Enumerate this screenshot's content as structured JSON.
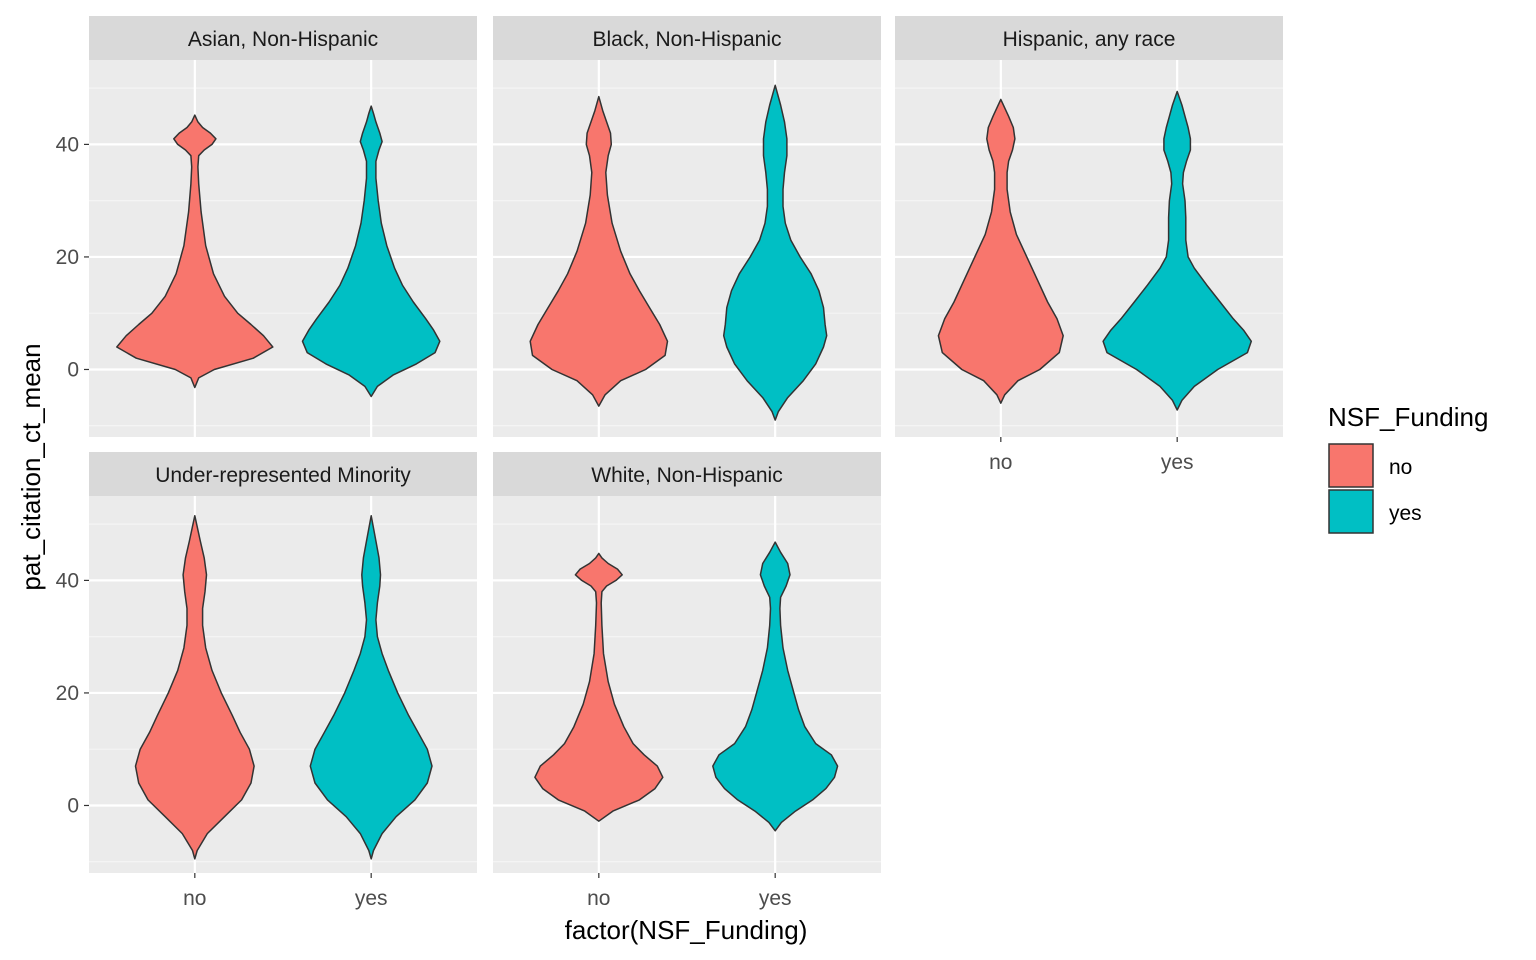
{
  "chart_data": {
    "type": "violin",
    "xlabel": "factor(NSF_Funding)",
    "ylabel": "pat_citation_ct_mean",
    "categories": [
      "no",
      "yes"
    ],
    "y_ticks": [
      0,
      20,
      40
    ],
    "ylim": [
      -12,
      55
    ],
    "colors": {
      "no": "#F8766D",
      "yes": "#00BFC4"
    },
    "legend": {
      "title": "NSF_Funding",
      "position": "right",
      "items": [
        "no",
        "yes"
      ]
    },
    "panels": [
      {
        "title": "Asian, Non-Hispanic",
        "violins": [
          {
            "group": "no",
            "profile": [
              [
                -3.2,
                0
              ],
              [
                -1.5,
                5
              ],
              [
                0,
                25
              ],
              [
                2,
                75
              ],
              [
                4,
                100
              ],
              [
                6,
                88
              ],
              [
                8,
                72
              ],
              [
                10,
                55
              ],
              [
                13,
                38
              ],
              [
                17,
                24
              ],
              [
                22,
                14
              ],
              [
                28,
                8
              ],
              [
                33,
                5
              ],
              [
                36,
                4
              ],
              [
                38,
                5
              ],
              [
                39,
                12
              ],
              [
                40,
                22
              ],
              [
                41,
                27
              ],
              [
                42,
                20
              ],
              [
                43,
                10
              ],
              [
                44,
                4
              ],
              [
                45.2,
                0
              ]
            ]
          },
          {
            "group": "yes",
            "profile": [
              [
                -4.8,
                0
              ],
              [
                -3,
                8
              ],
              [
                -1,
                28
              ],
              [
                1,
                58
              ],
              [
                3,
                82
              ],
              [
                5,
                88
              ],
              [
                7,
                80
              ],
              [
                9,
                70
              ],
              [
                12,
                54
              ],
              [
                15,
                40
              ],
              [
                18,
                30
              ],
              [
                22,
                20
              ],
              [
                26,
                13
              ],
              [
                30,
                9
              ],
              [
                34,
                6
              ],
              [
                37,
                6
              ],
              [
                39,
                10
              ],
              [
                40.5,
                14
              ],
              [
                42,
                11
              ],
              [
                44,
                6
              ],
              [
                45.5,
                3
              ],
              [
                46.8,
                0
              ]
            ]
          }
        ]
      },
      {
        "title": "Black, Non-Hispanic",
        "violins": [
          {
            "group": "no",
            "profile": [
              [
                -6.5,
                0
              ],
              [
                -4.5,
                8
              ],
              [
                -2,
                28
              ],
              [
                0,
                60
              ],
              [
                2.5,
                85
              ],
              [
                5,
                88
              ],
              [
                8,
                78
              ],
              [
                11,
                65
              ],
              [
                14,
                52
              ],
              [
                17,
                40
              ],
              [
                21,
                28
              ],
              [
                26,
                17
              ],
              [
                31,
                11
              ],
              [
                35,
                9
              ],
              [
                38,
                12
              ],
              [
                40,
                16
              ],
              [
                42,
                15
              ],
              [
                44,
                10
              ],
              [
                46,
                5
              ],
              [
                48.5,
                0
              ]
            ]
          },
          {
            "group": "yes",
            "profile": [
              [
                -9,
                0
              ],
              [
                -7.5,
                4
              ],
              [
                -5,
                16
              ],
              [
                -2,
                36
              ],
              [
                1,
                52
              ],
              [
                4,
                62
              ],
              [
                6,
                66
              ],
              [
                8,
                64
              ],
              [
                11,
                62
              ],
              [
                14,
                56
              ],
              [
                17,
                46
              ],
              [
                20,
                32
              ],
              [
                23,
                20
              ],
              [
                26,
                13
              ],
              [
                29,
                10
              ],
              [
                32,
                10
              ],
              [
                35,
                12
              ],
              [
                38,
                15
              ],
              [
                41,
                15
              ],
              [
                44,
                12
              ],
              [
                47,
                7
              ],
              [
                50.5,
                0
              ]
            ]
          }
        ]
      },
      {
        "title": "Hispanic, any race",
        "violins": [
          {
            "group": "no",
            "profile": [
              [
                -6,
                0
              ],
              [
                -4.5,
                5
              ],
              [
                -2,
                22
              ],
              [
                0,
                50
              ],
              [
                3,
                75
              ],
              [
                6,
                80
              ],
              [
                9,
                72
              ],
              [
                12,
                60
              ],
              [
                15,
                50
              ],
              [
                18,
                40
              ],
              [
                21,
                30
              ],
              [
                24,
                20
              ],
              [
                28,
                12
              ],
              [
                32,
                8
              ],
              [
                35,
                8
              ],
              [
                37,
                10
              ],
              [
                39,
                15
              ],
              [
                41,
                18
              ],
              [
                43,
                16
              ],
              [
                45,
                10
              ],
              [
                48,
                0
              ]
            ]
          },
          {
            "group": "yes",
            "profile": [
              [
                -7.2,
                0
              ],
              [
                -5.5,
                6
              ],
              [
                -3,
                22
              ],
              [
                0,
                52
              ],
              [
                3,
                90
              ],
              [
                5,
                95
              ],
              [
                7,
                85
              ],
              [
                9,
                72
              ],
              [
                12,
                55
              ],
              [
                15,
                38
              ],
              [
                18,
                22
              ],
              [
                20,
                14
              ],
              [
                23,
                11
              ],
              [
                27,
                11
              ],
              [
                30,
                10
              ],
              [
                33,
                7
              ],
              [
                35,
                8
              ],
              [
                37,
                12
              ],
              [
                39,
                17
              ],
              [
                41,
                17
              ],
              [
                43,
                14
              ],
              [
                45,
                10
              ],
              [
                47,
                6
              ],
              [
                49.4,
                0
              ]
            ]
          }
        ]
      },
      {
        "title": "Under-represented Minority",
        "violins": [
          {
            "group": "no",
            "profile": [
              [
                -9.5,
                0
              ],
              [
                -8,
                3
              ],
              [
                -5,
                16
              ],
              [
                -2,
                38
              ],
              [
                1,
                60
              ],
              [
                4,
                72
              ],
              [
                7,
                76
              ],
              [
                10,
                70
              ],
              [
                13,
                58
              ],
              [
                16,
                48
              ],
              [
                20,
                34
              ],
              [
                24,
                22
              ],
              [
                28,
                14
              ],
              [
                32,
                10
              ],
              [
                35,
                10
              ],
              [
                38,
                13
              ],
              [
                41,
                15
              ],
              [
                44,
                12
              ],
              [
                47,
                7
              ],
              [
                51.5,
                0
              ]
            ]
          },
          {
            "group": "yes",
            "profile": [
              [
                -9.5,
                0
              ],
              [
                -8,
                3
              ],
              [
                -5,
                14
              ],
              [
                -2,
                32
              ],
              [
                1,
                56
              ],
              [
                4,
                72
              ],
              [
                7,
                78
              ],
              [
                10,
                72
              ],
              [
                13,
                60
              ],
              [
                16,
                48
              ],
              [
                20,
                34
              ],
              [
                24,
                22
              ],
              [
                27,
                14
              ],
              [
                30,
                8
              ],
              [
                33,
                6
              ],
              [
                36,
                8
              ],
              [
                39,
                11
              ],
              [
                41,
                12
              ],
              [
                44,
                10
              ],
              [
                47,
                6
              ],
              [
                51.5,
                0
              ]
            ]
          }
        ]
      },
      {
        "title": "White, Non-Hispanic",
        "violins": [
          {
            "group": "no",
            "profile": [
              [
                -2.8,
                0
              ],
              [
                -1,
                18
              ],
              [
                1,
                52
              ],
              [
                3,
                72
              ],
              [
                5,
                82
              ],
              [
                7,
                75
              ],
              [
                9,
                58
              ],
              [
                11,
                44
              ],
              [
                14,
                32
              ],
              [
                18,
                20
              ],
              [
                22,
                12
              ],
              [
                27,
                6
              ],
              [
                32,
                4
              ],
              [
                36,
                3
              ],
              [
                38,
                4
              ],
              [
                39,
                10
              ],
              [
                40,
                22
              ],
              [
                41,
                30
              ],
              [
                42,
                24
              ],
              [
                43,
                12
              ],
              [
                44,
                4
              ],
              [
                44.8,
                0
              ]
            ]
          },
          {
            "group": "yes",
            "profile": [
              [
                -4.5,
                0
              ],
              [
                -3,
                8
              ],
              [
                -1,
                26
              ],
              [
                1,
                48
              ],
              [
                3,
                65
              ],
              [
                5,
                76
              ],
              [
                7,
                80
              ],
              [
                9,
                72
              ],
              [
                11,
                52
              ],
              [
                14,
                38
              ],
              [
                17,
                30
              ],
              [
                20,
                24
              ],
              [
                24,
                16
              ],
              [
                28,
                10
              ],
              [
                32,
                7
              ],
              [
                35,
                6
              ],
              [
                37,
                7
              ],
              [
                39,
                14
              ],
              [
                41,
                19
              ],
              [
                43,
                16
              ],
              [
                45,
                7
              ],
              [
                46.8,
                0
              ]
            ]
          }
        ]
      }
    ]
  }
}
